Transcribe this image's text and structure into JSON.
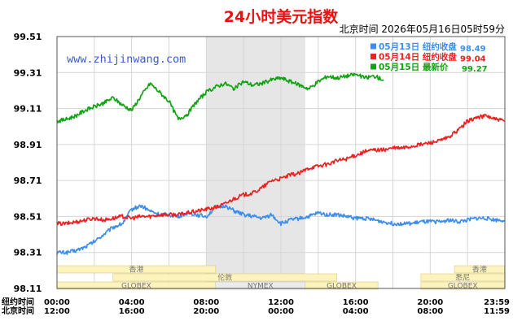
{
  "chart_data": {
    "type": "line",
    "title": "24小时美元指数",
    "subtitle": "北京时间  2026年05月16日05时59分",
    "watermark": "www.zhijinwang.com",
    "ylim": [
      98.11,
      99.51
    ],
    "yticks": [
      "99.51",
      "99.31",
      "99.11",
      "98.91",
      "98.71",
      "98.51",
      "98.31",
      "98.11"
    ],
    "grid": true,
    "legend_position": "top-right",
    "x_rows": [
      {
        "label": "纽约时间",
        "ticks": [
          "00:00",
          "04:00",
          "08:00",
          "12:00",
          "16:00",
          "20:00",
          "23:59"
        ]
      },
      {
        "label": "北京时间",
        "ticks": [
          "12:00",
          "16:00",
          "20:00",
          "00:00",
          "04:00",
          "08:00",
          "11:59"
        ]
      }
    ],
    "series": [
      {
        "name": "05月13日  纽约收盘",
        "last_label": "98.49",
        "color": "#3b8ef0",
        "x": [
          0,
          0.5,
          1,
          1.5,
          2,
          2.5,
          3,
          3.5,
          4,
          4.5,
          5,
          5.5,
          6,
          6.5,
          7,
          7.5,
          8,
          8.5,
          9,
          9.5,
          10,
          10.5,
          11,
          11.5,
          12,
          12.5,
          13,
          13.5,
          14,
          14.5,
          15,
          15.5,
          16,
          16.5,
          17,
          17.5,
          18,
          18.5,
          19,
          19.5,
          20,
          20.5,
          21,
          21.5,
          22,
          22.5,
          23,
          23.5,
          23.98
        ],
        "values": [
          98.31,
          98.31,
          98.32,
          98.34,
          98.37,
          98.41,
          98.45,
          98.47,
          98.55,
          98.57,
          98.54,
          98.52,
          98.52,
          98.51,
          98.53,
          98.52,
          98.51,
          98.56,
          98.57,
          98.54,
          98.52,
          98.51,
          98.5,
          98.52,
          98.47,
          98.49,
          98.5,
          98.51,
          98.53,
          98.52,
          98.52,
          98.51,
          98.5,
          98.5,
          98.49,
          98.48,
          98.47,
          98.47,
          98.47,
          98.48,
          98.48,
          98.48,
          98.49,
          98.48,
          98.49,
          98.5,
          98.5,
          98.49,
          98.49
        ]
      },
      {
        "name": "05月14日  纽约收盘",
        "last_label": "99.04",
        "color": "#ee2020",
        "x": [
          0,
          0.5,
          1,
          1.5,
          2,
          2.5,
          3,
          3.5,
          4,
          4.5,
          5,
          5.5,
          6,
          6.5,
          7,
          7.5,
          8,
          8.5,
          9,
          9.5,
          10,
          10.5,
          11,
          11.5,
          12,
          12.5,
          13,
          13.5,
          14,
          14.5,
          15,
          15.5,
          16,
          16.5,
          17,
          17.5,
          18,
          18.5,
          19,
          19.5,
          20,
          20.5,
          21,
          21.5,
          22,
          22.5,
          23,
          23.5,
          23.98
        ],
        "values": [
          98.47,
          98.47,
          98.48,
          98.49,
          98.5,
          98.49,
          98.5,
          98.51,
          98.5,
          98.51,
          98.51,
          98.52,
          98.52,
          98.52,
          98.53,
          98.54,
          98.55,
          98.56,
          98.58,
          98.61,
          98.63,
          98.64,
          98.67,
          98.71,
          98.72,
          98.74,
          98.75,
          98.78,
          98.79,
          98.8,
          98.82,
          98.83,
          98.85,
          98.87,
          98.88,
          98.88,
          98.89,
          98.89,
          98.9,
          98.91,
          98.92,
          98.93,
          98.95,
          98.99,
          99.04,
          99.06,
          99.07,
          99.05,
          99.04
        ]
      },
      {
        "name": "05月15日  最新价",
        "last_label": "99.27",
        "color": "#11a311",
        "x": [
          0,
          0.5,
          1,
          1.5,
          2,
          2.5,
          3,
          3.5,
          4,
          4.5,
          5,
          5.5,
          6,
          6.5,
          7,
          7.5,
          8,
          8.5,
          9,
          9.5,
          10,
          10.5,
          11,
          11.5,
          12,
          12.5,
          13,
          13.5,
          14,
          14.5,
          15,
          15.5,
          16,
          16.5,
          17,
          17.5
        ],
        "values": [
          99.04,
          99.05,
          99.07,
          99.1,
          99.12,
          99.14,
          99.17,
          99.13,
          99.1,
          99.18,
          99.25,
          99.2,
          99.15,
          99.05,
          99.08,
          99.15,
          99.2,
          99.23,
          99.25,
          99.22,
          99.26,
          99.24,
          99.25,
          99.27,
          99.28,
          99.26,
          99.24,
          99.22,
          99.26,
          99.29,
          99.28,
          99.29,
          99.3,
          99.28,
          99.29,
          99.27
        ]
      }
    ],
    "sessions": [
      {
        "name": "香港",
        "row": 0,
        "start": 0,
        "end": 8.5
      },
      {
        "name": "香港",
        "row": 0,
        "start": 21.3,
        "end": 23.98
      },
      {
        "name": "伦敦",
        "row": 1,
        "start": 3,
        "end": 15
      },
      {
        "name": "悉尼",
        "row": 1,
        "start": 19.5,
        "end": 23.98
      },
      {
        "name": "GLOBEX",
        "row": 2,
        "start": 0,
        "end": 8.5
      },
      {
        "name": "NYMEX",
        "row": 2,
        "start": 8.5,
        "end": 13.3
      },
      {
        "name": "GLOBEX",
        "row": 2,
        "start": 13.3,
        "end": 17.2
      },
      {
        "name": "GLOBEX",
        "row": 2,
        "start": 19.5,
        "end": 23.98
      }
    ],
    "highlight_range": [
      8,
      13.3
    ]
  }
}
